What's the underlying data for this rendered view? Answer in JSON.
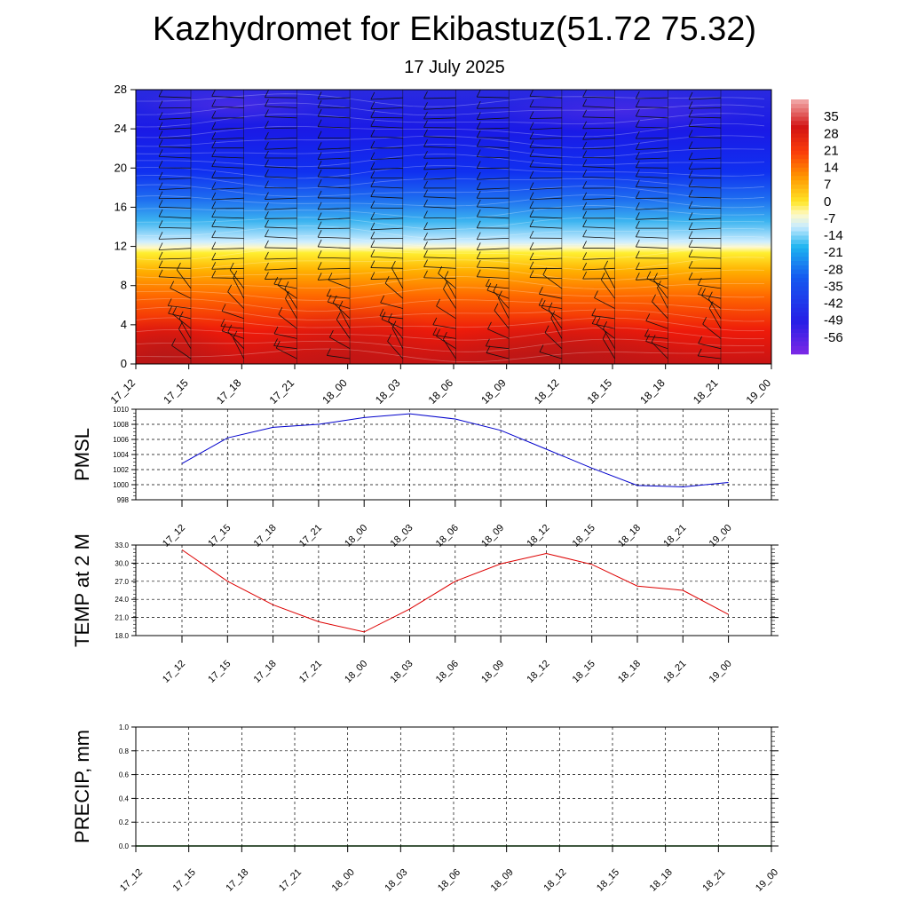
{
  "title": "Kazhydromet for Ekibastuz(51.72 75.32)",
  "subtitle": "17 July 2025",
  "time_labels": [
    "17_12",
    "17_15",
    "17_18",
    "17_21",
    "18_00",
    "18_03",
    "18_06",
    "18_09",
    "18_12",
    "18_15",
    "18_18",
    "18_21",
    "19_00"
  ],
  "colors": {
    "pmsl_line": "#0000cc",
    "temp_line": "#dd0000",
    "precip_line": "#006400",
    "grid": "#000000"
  },
  "chart_data": [
    {
      "type": "heatmap",
      "yticks": [
        0,
        4,
        8,
        12,
        16,
        20,
        24,
        28
      ],
      "ylim": [
        0,
        28
      ],
      "colorbar_labels": [
        "35",
        "28",
        "21",
        "14",
        "7",
        "0",
        "-7",
        "-14",
        "-21",
        "-28",
        "-35",
        "-42",
        "-49",
        "-56"
      ],
      "colorbar_range": [
        -63,
        42
      ],
      "overlay": "wind-barbs"
    },
    {
      "type": "line",
      "ylabel": "PMSL",
      "ylim": [
        998,
        1010
      ],
      "yticks": [
        "998",
        "1000",
        "1002",
        "1004",
        "1006",
        "1008",
        "1010"
      ],
      "values": [
        1002.8,
        1006.2,
        1007.6,
        1008.0,
        1008.9,
        1009.4,
        1008.7,
        1007.2,
        1004.7,
        1002.2,
        999.9,
        999.7,
        1000.3
      ]
    },
    {
      "type": "line",
      "ylabel": "TEMP at 2 M",
      "ylim": [
        18.0,
        33.0
      ],
      "yticks": [
        "18.0",
        "21.0",
        "24.0",
        "27.0",
        "30.0",
        "33.0"
      ],
      "values": [
        32.2,
        27.0,
        23.1,
        20.3,
        18.6,
        22.4,
        27.0,
        29.9,
        31.6,
        29.8,
        26.2,
        25.5,
        21.5
      ]
    },
    {
      "type": "line",
      "ylabel": "PRECIP, mm",
      "ylim": [
        0.0,
        1.0
      ],
      "yticks": [
        "0.0",
        "0.2",
        "0.4",
        "0.6",
        "0.8",
        "1.0"
      ],
      "values": [
        0,
        0,
        0,
        0,
        0,
        0,
        0,
        0,
        0,
        0,
        0,
        0,
        0
      ]
    }
  ]
}
